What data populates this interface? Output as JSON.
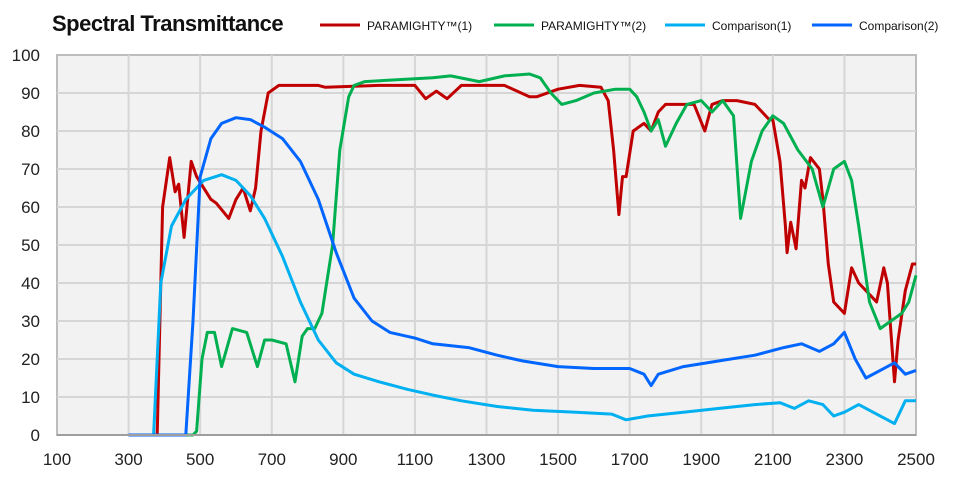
{
  "chart_data": {
    "type": "line",
    "title": "Spectral Transmittance",
    "xlabel": "",
    "ylabel": "",
    "xlim": [
      100,
      2500
    ],
    "ylim": [
      0,
      100
    ],
    "x_ticks": [
      100,
      300,
      500,
      700,
      900,
      1100,
      1300,
      1500,
      1700,
      1900,
      2100,
      2300,
      2500
    ],
    "y_ticks": [
      0,
      10,
      20,
      30,
      40,
      50,
      60,
      70,
      80,
      90,
      100
    ],
    "grid": true,
    "legend_position": "top",
    "series": [
      {
        "name": "PARAMIGHTY™(1)",
        "color": "#c00000",
        "x": [
          300,
          380,
          385,
          395,
          415,
          430,
          440,
          455,
          475,
          490,
          530,
          545,
          580,
          600,
          620,
          640,
          655,
          670,
          690,
          720,
          830,
          850,
          1000,
          1100,
          1130,
          1160,
          1190,
          1230,
          1350,
          1420,
          1440,
          1500,
          1560,
          1620,
          1640,
          1655,
          1670,
          1680,
          1690,
          1710,
          1740,
          1760,
          1780,
          1800,
          1880,
          1910,
          1930,
          1960,
          2000,
          2050,
          2090,
          2100,
          2120,
          2135,
          2140,
          2150,
          2165,
          2180,
          2190,
          2205,
          2230,
          2240,
          2255,
          2270,
          2300,
          2320,
          2340,
          2370,
          2390,
          2410,
          2420,
          2440,
          2450,
          2470,
          2490,
          2500
        ],
        "y": [
          0,
          0,
          20,
          60,
          73,
          64,
          66,
          52,
          72,
          68,
          62,
          61,
          57,
          62,
          65,
          59,
          65,
          80,
          90,
          92,
          92,
          91.5,
          92,
          92,
          88.5,
          90.5,
          88.5,
          92,
          92,
          89,
          89,
          91,
          92,
          91.5,
          88,
          75,
          58,
          68,
          68,
          80,
          82,
          80,
          85,
          87,
          87,
          80,
          87,
          88,
          88,
          87,
          83,
          83,
          72,
          55,
          48,
          56,
          49,
          67,
          65,
          73,
          70,
          62,
          45,
          35,
          32,
          44,
          40,
          37,
          35,
          44,
          40,
          14,
          25,
          38,
          45,
          45
        ]
      },
      {
        "name": "PARAMIGHTY™(2)",
        "color": "#00b050",
        "x": [
          300,
          480,
          490,
          505,
          520,
          540,
          560,
          590,
          630,
          660,
          680,
          700,
          740,
          765,
          785,
          800,
          820,
          840,
          870,
          890,
          915,
          930,
          960,
          1050,
          1150,
          1200,
          1280,
          1350,
          1420,
          1450,
          1480,
          1510,
          1550,
          1600,
          1660,
          1700,
          1720,
          1740,
          1760,
          1780,
          1800,
          1830,
          1860,
          1900,
          1930,
          1960,
          1990,
          2010,
          2040,
          2070,
          2100,
          2130,
          2170,
          2210,
          2240,
          2270,
          2300,
          2320,
          2340,
          2370,
          2400,
          2430,
          2460,
          2480,
          2500
        ],
        "y": [
          0,
          0,
          1,
          20,
          27,
          27,
          18,
          28,
          27,
          18,
          25,
          25,
          24,
          14,
          26,
          28,
          28,
          32,
          50,
          75,
          89,
          92,
          93,
          93.5,
          94,
          94.5,
          93,
          94.5,
          95,
          94,
          90,
          87,
          88,
          90,
          91,
          91,
          89,
          85,
          80,
          83,
          76,
          82,
          87,
          88,
          85,
          88,
          84,
          57,
          72,
          80,
          84,
          82,
          75,
          70,
          60,
          70,
          72,
          67,
          55,
          35,
          28,
          30,
          32,
          35,
          42
        ]
      },
      {
        "name": "Comparison(1)",
        "color": "#00b0f0",
        "x": [
          300,
          370,
          390,
          420,
          460,
          510,
          560,
          600,
          640,
          680,
          730,
          780,
          830,
          880,
          930,
          1000,
          1080,
          1150,
          1230,
          1330,
          1430,
          1550,
          1650,
          1690,
          1750,
          1850,
          1950,
          2050,
          2120,
          2160,
          2200,
          2240,
          2270,
          2300,
          2340,
          2380,
          2440,
          2470,
          2500
        ],
        "y": [
          0,
          0,
          40,
          55,
          62,
          67,
          68.5,
          67,
          63,
          57,
          47,
          35,
          25,
          19,
          16,
          14,
          12,
          10.5,
          9,
          7.5,
          6.5,
          6,
          5.5,
          4,
          5,
          6,
          7,
          8,
          8.5,
          7,
          9,
          8,
          5,
          6,
          8,
          6,
          3,
          9,
          9
        ]
      },
      {
        "name": "Comparison(2)",
        "color": "#0066ff",
        "x": [
          300,
          460,
          480,
          500,
          530,
          560,
          600,
          640,
          680,
          730,
          780,
          830,
          880,
          930,
          980,
          1030,
          1100,
          1150,
          1250,
          1330,
          1400,
          1500,
          1600,
          1700,
          1740,
          1760,
          1780,
          1850,
          1950,
          2050,
          2130,
          2180,
          2230,
          2270,
          2300,
          2330,
          2360,
          2400,
          2440,
          2470,
          2500
        ],
        "y": [
          0,
          0,
          30,
          68,
          78,
          82,
          83.5,
          83,
          81,
          78,
          72,
          62,
          48,
          36,
          30,
          27,
          25.5,
          24,
          23,
          21,
          19.5,
          18,
          17.5,
          17.5,
          16,
          13,
          16,
          18,
          19.5,
          21,
          23,
          24,
          22,
          24,
          27,
          20,
          15,
          17,
          19,
          16,
          17
        ]
      }
    ]
  }
}
